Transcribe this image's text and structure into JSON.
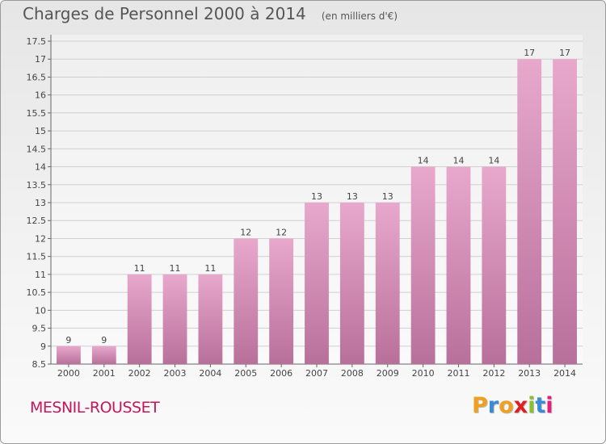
{
  "header": {
    "title": "Charges de Personnel 2000 à 2014",
    "subtitle": "(en milliers d'€)"
  },
  "footer": {
    "place": "MESNIL-ROUSSET",
    "logo": "Proxiti"
  },
  "colors": {
    "bar_top": "#e8a8cc",
    "bar_bottom": "#b8709b",
    "place_text": "#c2185b",
    "logo_letters": [
      "#f0a020",
      "#3a8ad8",
      "#f0a020",
      "#e02020",
      "#8ac030",
      "#3a8ad8",
      "#e0207a"
    ]
  },
  "chart_data": {
    "type": "bar",
    "categories": [
      "2000",
      "2001",
      "2002",
      "2003",
      "2004",
      "2005",
      "2006",
      "2007",
      "2008",
      "2009",
      "2010",
      "2011",
      "2012",
      "2013",
      "2014"
    ],
    "values": [
      9,
      9,
      11,
      11,
      11,
      12,
      12,
      13,
      13,
      13,
      14,
      14,
      14,
      17,
      17
    ],
    "ylim": [
      8.5,
      17.5
    ],
    "yticks": [
      8.5,
      9,
      9.5,
      10,
      10.5,
      11,
      11.5,
      12,
      12.5,
      13,
      13.5,
      14,
      14.5,
      15,
      15.5,
      16,
      16.5,
      17,
      17.5
    ],
    "ytick_labels": [
      "8.5",
      "9",
      "9.5",
      "10",
      "10.5",
      "11",
      "11.5",
      "12",
      "12.5",
      "13",
      "13.5",
      "14",
      "14.5",
      "15",
      "15.5",
      "16",
      "16.5",
      "17",
      "17.5"
    ],
    "grid": true,
    "title": "Charges de Personnel 2000 à 2014",
    "xlabel": "",
    "ylabel": ""
  }
}
